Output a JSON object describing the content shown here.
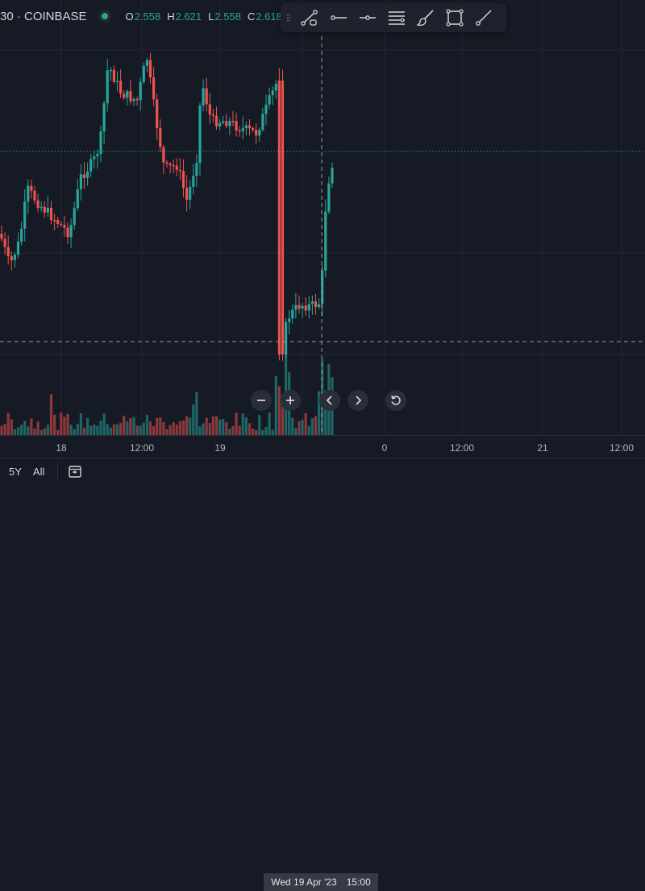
{
  "header": {
    "symbol_text": "30 · COINBASE",
    "ohlc": [
      {
        "key": "O",
        "value": "2.558"
      },
      {
        "key": "H",
        "value": "2.621"
      },
      {
        "key": "L",
        "value": "2.558"
      },
      {
        "key": "C",
        "value": "2.618"
      }
    ]
  },
  "toolbar": {
    "tools": [
      {
        "name": "trend-line-icon"
      },
      {
        "name": "horizontal-ray-icon"
      },
      {
        "name": "horizontal-line-icon"
      },
      {
        "name": "text-lines-icon"
      },
      {
        "name": "brush-icon"
      },
      {
        "name": "rectangle-icon"
      },
      {
        "name": "ray-line-icon"
      }
    ]
  },
  "time_axis": {
    "ticks": [
      "18",
      "12:00",
      "19",
      "0",
      "12:00",
      "21",
      "12:00"
    ],
    "crosshair_date": "Wed 19 Apr '23",
    "crosshair_time": "15:00"
  },
  "bottom_bar": {
    "range_buttons": [
      "5Y",
      "All"
    ]
  },
  "chart_controls": {
    "buttons": [
      "zoom-out",
      "zoom-in",
      "scroll-left",
      "scroll-right",
      "reset"
    ]
  },
  "colors": {
    "up": "#26a69a",
    "down": "#ef5350",
    "background": "#161a25",
    "grid": "#232632"
  }
}
